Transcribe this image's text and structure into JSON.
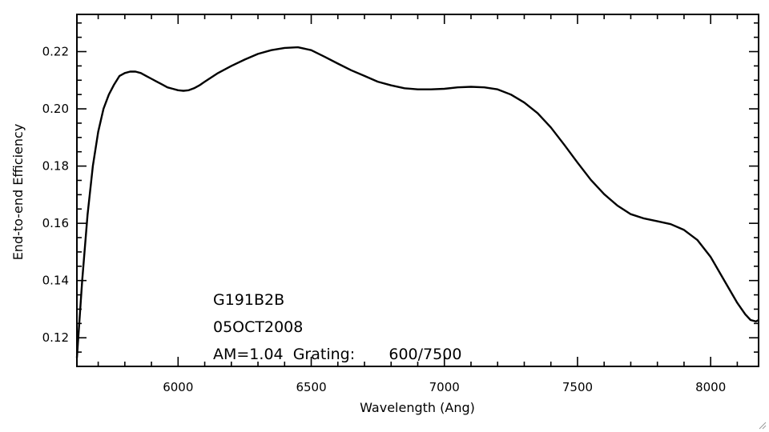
{
  "chart_data": {
    "type": "line",
    "xlabel": "Wavelength (Ang)",
    "ylabel": "End-to-end Efficiency",
    "xlim": [
      5620,
      8180
    ],
    "ylim": [
      0.11,
      0.233
    ],
    "xticks": [
      6000,
      6500,
      7000,
      7500,
      8000
    ],
    "xtick_labels": [
      "6000",
      "6500",
      "7000",
      "7500",
      "8000"
    ],
    "yticks": [
      0.12,
      0.14,
      0.16,
      0.18,
      0.2,
      0.22
    ],
    "ytick_labels": [
      "0.12",
      "0.14",
      "0.16",
      "0.18",
      "0.20",
      "0.22"
    ],
    "grid": false,
    "annotations": [
      "G191B2B",
      "05OCT2008",
      "AM=1.04  Grating:       600/7500"
    ],
    "series": [
      {
        "x": [
          5620,
          5640,
          5660,
          5680,
          5700,
          5720,
          5740,
          5760,
          5780,
          5800,
          5820,
          5840,
          5860,
          5880,
          5900,
          5920,
          5940,
          5960,
          5980,
          6000,
          6020,
          6040,
          6060,
          6080,
          6100,
          6150,
          6200,
          6250,
          6300,
          6350,
          6400,
          6450,
          6500,
          6550,
          6600,
          6650,
          6700,
          6750,
          6800,
          6850,
          6900,
          6950,
          7000,
          7050,
          7100,
          7150,
          7200,
          7250,
          7300,
          7350,
          7400,
          7450,
          7500,
          7550,
          7600,
          7650,
          7700,
          7750,
          7800,
          7850,
          7900,
          7950,
          8000,
          8050,
          8100,
          8130,
          8150,
          8170,
          8180
        ],
        "y": [
          0.113,
          0.14,
          0.163,
          0.18,
          0.192,
          0.2,
          0.205,
          0.2085,
          0.2115,
          0.2125,
          0.213,
          0.213,
          0.2125,
          0.2115,
          0.2105,
          0.2095,
          0.2085,
          0.2075,
          0.207,
          0.2065,
          0.2063,
          0.2065,
          0.2072,
          0.2082,
          0.2095,
          0.2125,
          0.215,
          0.2172,
          0.2192,
          0.2205,
          0.2213,
          0.2215,
          0.2205,
          0.2182,
          0.2158,
          0.2135,
          0.2115,
          0.2095,
          0.2082,
          0.2072,
          0.2068,
          0.2068,
          0.207,
          0.2075,
          0.2077,
          0.2075,
          0.2068,
          0.205,
          0.2022,
          0.1985,
          0.1935,
          0.1875,
          0.1812,
          0.1752,
          0.1702,
          0.1662,
          0.1632,
          0.1617,
          0.1607,
          0.1597,
          0.1577,
          0.1542,
          0.1482,
          0.1402,
          0.1322,
          0.1282,
          0.1262,
          0.1257,
          0.1262
        ]
      }
    ]
  }
}
